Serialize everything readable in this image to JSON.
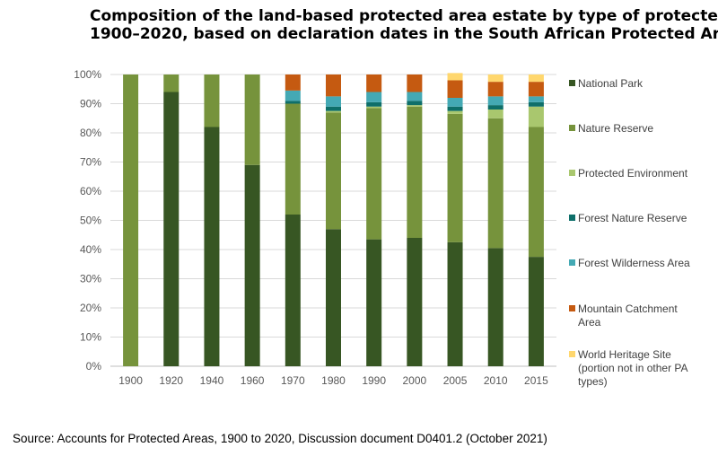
{
  "chart_data": {
    "type": "bar",
    "stacked": true,
    "title_line1": "Composition of the land-based protected area estate by type of protected",
    "title_line2": "1900–2020, based on declaration dates in the South African Protected Are",
    "categories": [
      "1900",
      "1920",
      "1940",
      "1960",
      "1970",
      "1980",
      "1990",
      "2000",
      "2005",
      "2010",
      "2015"
    ],
    "ylim": [
      0,
      100
    ],
    "yticks": [
      "0%",
      "10%",
      "20%",
      "30%",
      "40%",
      "50%",
      "60%",
      "70%",
      "80%",
      "90%",
      "100%"
    ],
    "legend_position": "right",
    "series": [
      {
        "name": "National Park",
        "lines": [
          "National Park"
        ],
        "color": "#375623",
        "values": [
          0,
          94,
          82,
          69,
          52,
          47,
          43.5,
          44,
          42.5,
          40.5,
          37.5
        ]
      },
      {
        "name": "Nature Reserve",
        "lines": [
          "Nature Reserve"
        ],
        "color": "#76933c",
        "values": [
          100,
          6,
          18,
          31,
          38,
          40,
          45,
          45,
          44,
          44.5,
          44.5
        ]
      },
      {
        "name": "Protected Environment",
        "lines": [
          "Protected Environment"
        ],
        "color": "#a9c76e",
        "values": [
          0,
          0,
          0,
          0,
          0,
          0.5,
          0.5,
          0.5,
          1,
          3,
          7
        ]
      },
      {
        "name": "Forest Nature Reserve",
        "lines": [
          "Forest Nature Reserve"
        ],
        "color": "#0e6f6a",
        "values": [
          0,
          0,
          0,
          0,
          1,
          1.5,
          1.5,
          1.5,
          1.5,
          1.5,
          1.5
        ]
      },
      {
        "name": "Forest Wilderness Area",
        "lines": [
          "Forest Wilderness Area"
        ],
        "color": "#44a9b4",
        "values": [
          0,
          0,
          0,
          0,
          3.5,
          3.5,
          3.5,
          3,
          3,
          3,
          2
        ]
      },
      {
        "name": "Mountain Catchment Area",
        "lines": [
          "Mountain Catchment",
          "Area"
        ],
        "color": "#c55a11",
        "values": [
          0,
          0,
          0,
          0,
          5.5,
          7.5,
          6,
          6,
          6,
          5,
          5
        ]
      },
      {
        "name": "World Heritage Site (portion not in other PA types)",
        "lines": [
          "World Heritage Site",
          "(portion not in other PA",
          "types)"
        ],
        "color": "#ffd76e",
        "values": [
          0,
          0,
          0,
          0,
          0,
          0,
          0,
          0,
          2.5,
          2.5,
          2.5
        ]
      }
    ]
  },
  "source": "Source: Accounts for Protected Areas, 1900 to 2020, Discussion document D0401.2 (October 2021)"
}
